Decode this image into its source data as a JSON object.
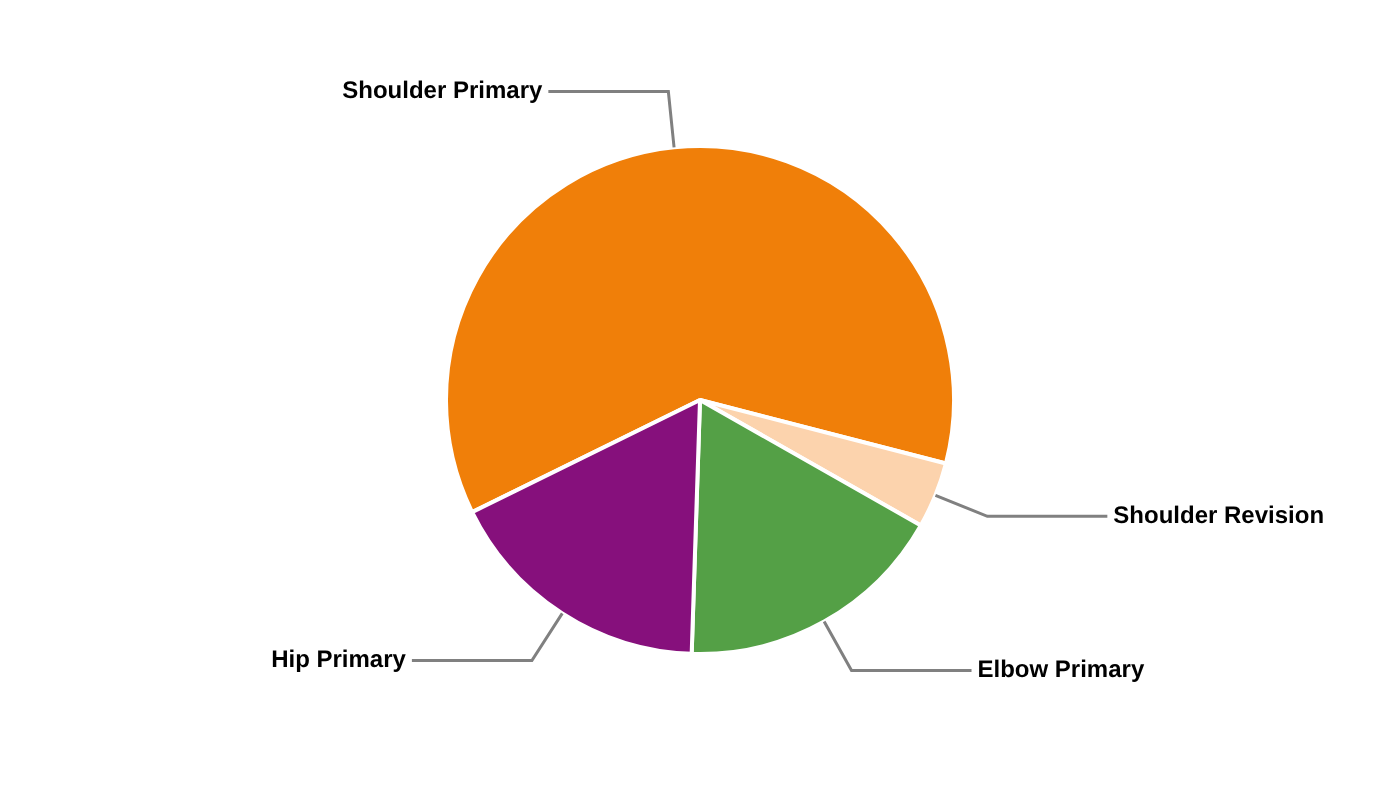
{
  "chart_data": {
    "type": "pie",
    "categories": [
      "Shoulder Primary",
      "Shoulder Revision",
      "Elbow Primary",
      "Hip Primary"
    ],
    "values": [
      61.3,
      4.2,
      17.3,
      17.2
    ],
    "colors": [
      "#f07f09",
      "#fcd3ad",
      "#54a046",
      "#86107c"
    ],
    "legend": false
  }
}
